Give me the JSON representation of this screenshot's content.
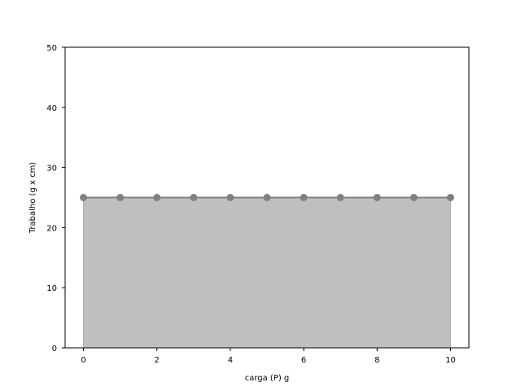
{
  "chart_data": {
    "type": "area",
    "title": "",
    "xlabel": "carga (P) g",
    "ylabel": "Trabalho (g x cm)",
    "xlim": [
      -0.5,
      10.5
    ],
    "ylim": [
      0,
      50
    ],
    "xticks": [
      0,
      2,
      4,
      6,
      8,
      10
    ],
    "yticks": [
      0,
      10,
      20,
      30,
      40,
      50
    ],
    "grid": false,
    "x": [
      0,
      1,
      2,
      3,
      4,
      5,
      6,
      7,
      8,
      9,
      10
    ],
    "series": [
      {
        "values": [
          25,
          25,
          25,
          25,
          25,
          25,
          25,
          25,
          25,
          25,
          25
        ],
        "line_color": "#808080",
        "marker_color": "#808080",
        "fill_color": "#bfbfbf"
      }
    ]
  }
}
